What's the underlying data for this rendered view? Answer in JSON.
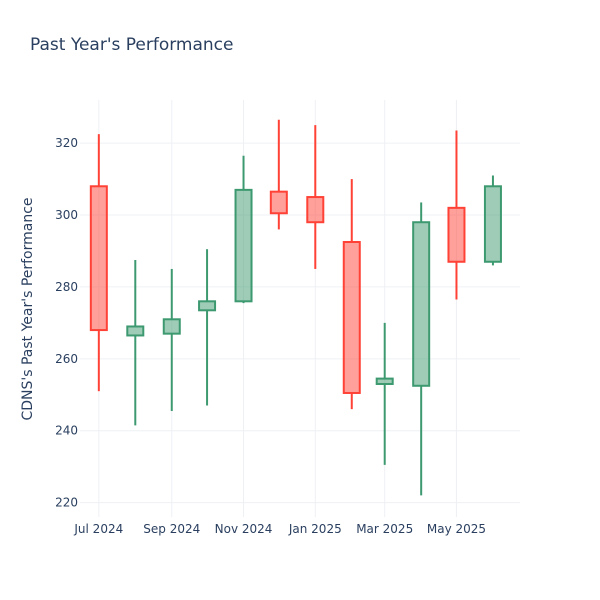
{
  "chart_data": {
    "type": "candlestick",
    "title": "Past Year's Performance",
    "xlabel": "",
    "ylabel": "CDNS's Past Year's Performance",
    "ylim": [
      216,
      332
    ],
    "yticks": [
      220,
      240,
      260,
      280,
      300,
      320
    ],
    "xticks": [
      {
        "label": "Jul 2024",
        "date": "2024-07-01"
      },
      {
        "label": "Sep 2024",
        "date": "2024-09-01"
      },
      {
        "label": "Nov 2024",
        "date": "2024-11-01"
      },
      {
        "label": "Jan 2025",
        "date": "2025-01-01"
      },
      {
        "label": "Mar 2025",
        "date": "2025-03-01"
      },
      {
        "label": "May 2025",
        "date": "2025-05-01"
      }
    ],
    "xrange": [
      "2024-06-15",
      "2025-06-24"
    ],
    "increasing_color": "#3d9970",
    "decreasing_color": "#ff4136",
    "grid": true,
    "legend": "none",
    "candles": [
      {
        "date": "2024-07-01",
        "open": 308,
        "high": 322.5,
        "low": 251,
        "close": 268
      },
      {
        "date": "2024-08-01",
        "open": 266.5,
        "high": 287.5,
        "low": 241.5,
        "close": 269
      },
      {
        "date": "2024-09-01",
        "open": 267,
        "high": 285,
        "low": 245.5,
        "close": 271
      },
      {
        "date": "2024-10-01",
        "open": 273.5,
        "high": 290.5,
        "low": 247,
        "close": 276
      },
      {
        "date": "2024-11-01",
        "open": 276,
        "high": 316.5,
        "low": 275.5,
        "close": 307
      },
      {
        "date": "2024-12-01",
        "open": 306.5,
        "high": 326.5,
        "low": 296,
        "close": 300.5
      },
      {
        "date": "2025-01-01",
        "open": 305,
        "high": 325,
        "low": 285,
        "close": 298
      },
      {
        "date": "2025-02-01",
        "open": 292.5,
        "high": 310,
        "low": 246,
        "close": 250.5
      },
      {
        "date": "2025-03-01",
        "open": 253,
        "high": 270,
        "low": 230.5,
        "close": 254.5
      },
      {
        "date": "2025-04-01",
        "open": 252.5,
        "high": 303.5,
        "low": 222,
        "close": 298
      },
      {
        "date": "2025-05-01",
        "open": 302,
        "high": 323.5,
        "low": 276.5,
        "close": 287
      },
      {
        "date": "2025-06-01",
        "open": 287,
        "high": 311,
        "low": 286,
        "close": 308
      }
    ]
  }
}
